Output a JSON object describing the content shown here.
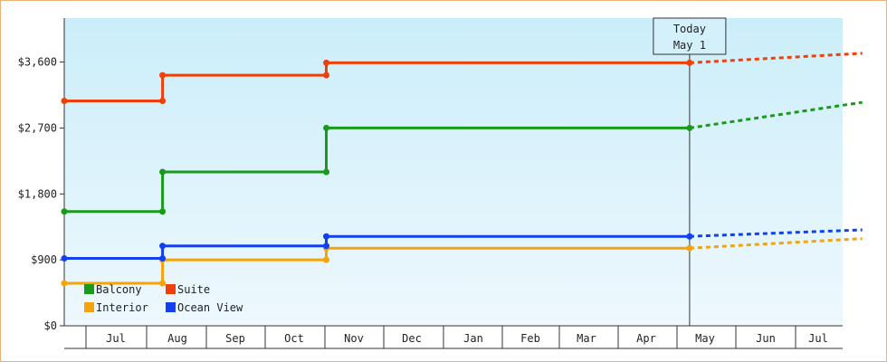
{
  "chart_data": {
    "type": "line",
    "title": "",
    "xlabel": "",
    "ylabel": "",
    "ylim": [
      0,
      4200
    ],
    "yticks": [
      0,
      900,
      1800,
      2700,
      3600
    ],
    "ytick_labels": [
      "$0",
      "$900",
      "$1,800",
      "$2,700",
      "$3,600"
    ],
    "xtick_labels": [
      "Jul",
      "Aug",
      "Sep",
      "Oct",
      "Nov",
      "Dec",
      "Jan",
      "Feb",
      "Mar",
      "Apr",
      "May",
      "Jun",
      "Jul"
    ],
    "today_marker": {
      "line1": "Today",
      "line2": "May 1"
    },
    "grid": false,
    "legend_position": "bottom-left",
    "series": [
      {
        "name": "Balcony",
        "color": "#1a9a1a",
        "actual": [
          [
            0,
            1560
          ],
          [
            1.65,
            1560
          ],
          [
            1.65,
            2100
          ],
          [
            4.4,
            2100
          ],
          [
            4.4,
            2700
          ],
          [
            10.5,
            2700
          ]
        ],
        "forecast": [
          [
            10.5,
            2700
          ],
          [
            13.4,
            3050
          ]
        ]
      },
      {
        "name": "Suite",
        "color": "#f0400a",
        "actual": [
          [
            0,
            3070
          ],
          [
            1.65,
            3070
          ],
          [
            1.65,
            3420
          ],
          [
            4.4,
            3420
          ],
          [
            4.4,
            3590
          ],
          [
            10.5,
            3590
          ]
        ],
        "forecast": [
          [
            10.5,
            3590
          ],
          [
            13.4,
            3720
          ]
        ]
      },
      {
        "name": "Interior",
        "color": "#f5a30a",
        "actual": [
          [
            0,
            580
          ],
          [
            1.65,
            580
          ],
          [
            1.65,
            900
          ],
          [
            4.4,
            900
          ],
          [
            4.4,
            1060
          ],
          [
            10.5,
            1060
          ]
        ],
        "forecast": [
          [
            10.5,
            1060
          ],
          [
            13.4,
            1190
          ]
        ]
      },
      {
        "name": "Ocean View",
        "color": "#1040f0",
        "actual": [
          [
            0,
            920
          ],
          [
            1.65,
            920
          ],
          [
            1.65,
            1090
          ],
          [
            4.4,
            1090
          ],
          [
            4.4,
            1220
          ],
          [
            10.5,
            1220
          ]
        ],
        "forecast": [
          [
            10.5,
            1220
          ],
          [
            13.4,
            1310
          ]
        ]
      }
    ],
    "legend_order": [
      "Balcony",
      "Suite",
      "Interior",
      "Ocean View"
    ]
  }
}
